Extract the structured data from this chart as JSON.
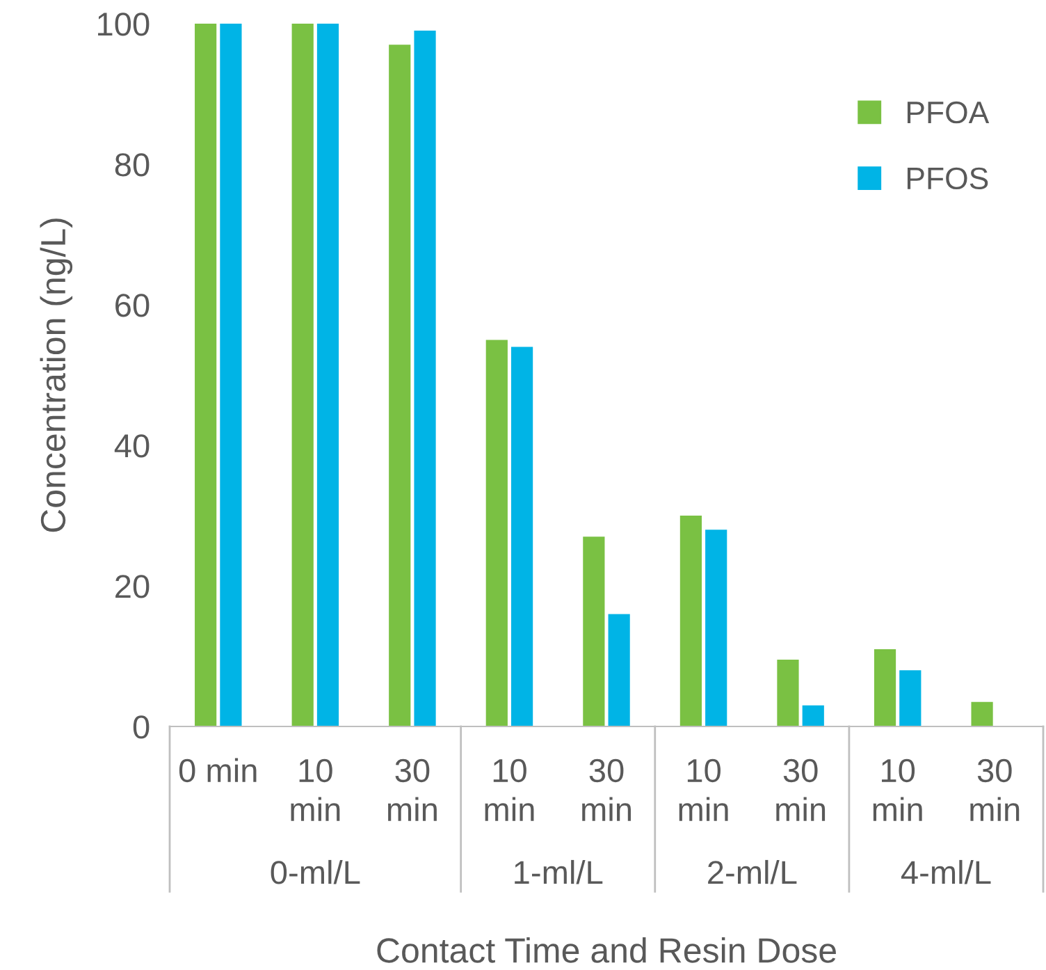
{
  "chart_data": {
    "type": "bar",
    "xlabel": "Contact Time and Resin Dose",
    "ylabel": "Concentration (ng/L)",
    "categories": [
      "0 min",
      "10 min",
      "30 min",
      "10 min",
      "30 min",
      "10 min",
      "30 min",
      "10 min",
      "30 min"
    ],
    "annotations": [
      "0-ml/L",
      "1-ml/L",
      "2-ml/L",
      "4-ml/L"
    ],
    "series": [
      {
        "name": "PFOA",
        "color": "#7ac143",
        "values": [
          100,
          100,
          97,
          55,
          27,
          30,
          9.5,
          11,
          3.5
        ]
      },
      {
        "name": "PFOS",
        "color": "#00b4e6",
        "values": [
          100,
          100,
          99,
          54,
          16,
          28,
          3,
          8,
          null
        ]
      }
    ],
    "ylim": [
      0,
      100
    ],
    "yticks": [
      0,
      20,
      40,
      60,
      80,
      100
    ],
    "grid": false,
    "legend": "top right"
  }
}
